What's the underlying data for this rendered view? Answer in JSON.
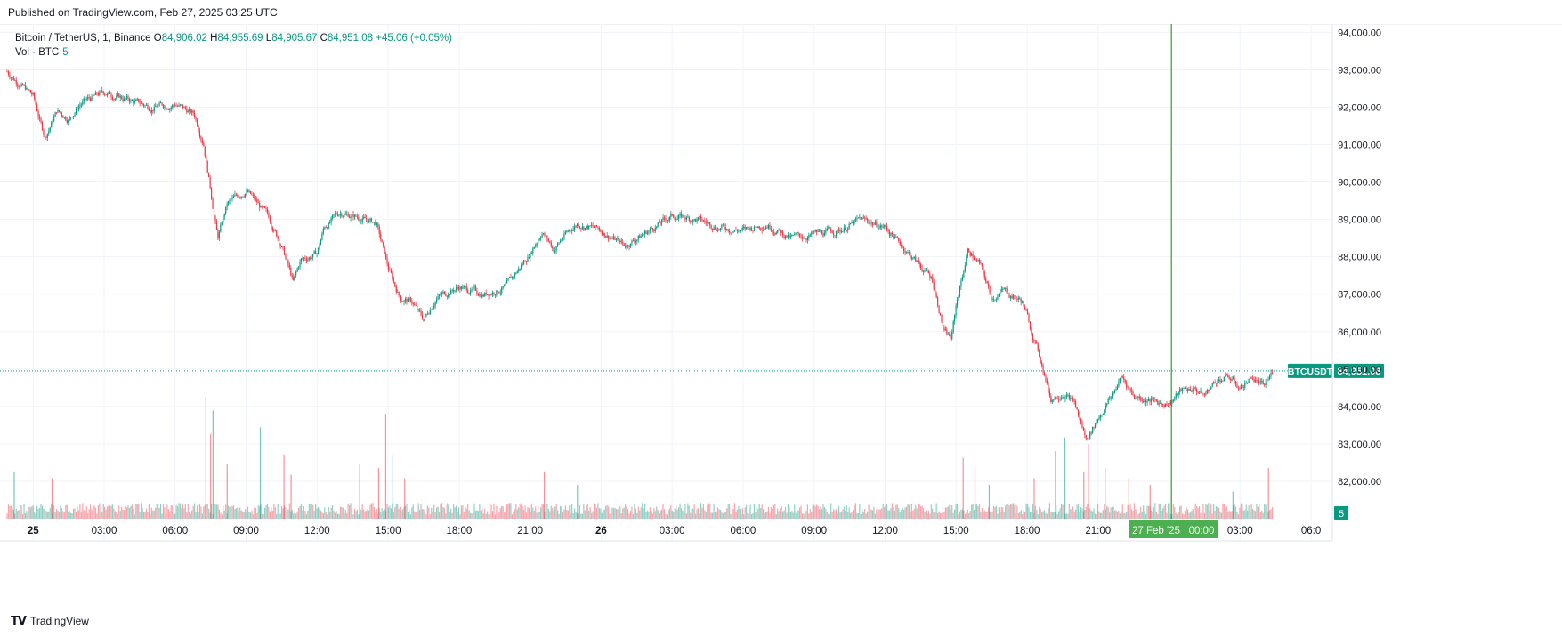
{
  "publish_note": "Published on TradingView.com, Feb 27, 2025 03:25 UTC",
  "legend": {
    "symbol": "Bitcoin / TetherUS, 1, Binance",
    "open_label": "O",
    "open": "84,906.02",
    "high_label": "H",
    "high": "84,955.69",
    "low_label": "L",
    "low": "84,905.67",
    "close_label": "C",
    "close": "84,951.08",
    "change": "+45.06 (+0.05%)",
    "volume_label": "Vol · BTC",
    "volume_value": "5"
  },
  "price_badge": {
    "symbol": "BTCUSDT",
    "price": "84,951.08"
  },
  "volume_badge": "5",
  "crosshair_time_label": "27 Feb '25   00:00",
  "footer_brand": "TradingView",
  "colors": {
    "up": "#089981",
    "down": "#f23645",
    "crosshair": "#2ca02c",
    "badge_bg": "#089981",
    "grid": "#f0f3fa",
    "time_badge": "#4caf50"
  },
  "chart_data": {
    "type": "candlestick",
    "title": "Bitcoin / TetherUS, 1, Binance",
    "y_axis": {
      "range": [
        81000,
        94200
      ],
      "ticks": [
        94000,
        93000,
        92000,
        91000,
        90000,
        89000,
        88000,
        87000,
        86000,
        85000,
        84000,
        83000,
        82000
      ],
      "tick_labels": [
        "94,000.00",
        "93,000.00",
        "92,000.00",
        "91,000.00",
        "90,000.00",
        "89,000.00",
        "88,000.00",
        "87,000.00",
        "86,000.00",
        "85,000.00",
        "84,000.00",
        "83,000.00",
        "82,000.00"
      ]
    },
    "x_axis": {
      "tick_hours": [
        0,
        3,
        6,
        9,
        12,
        15,
        18,
        21,
        24,
        27,
        30,
        33,
        36,
        39,
        42,
        45,
        48,
        51,
        54
      ],
      "tick_labels": [
        "25",
        "03:00",
        "06:00",
        "09:00",
        "12:00",
        "15:00",
        "18:00",
        "21:00",
        "26",
        "03:00",
        "06:00",
        "09:00",
        "12:00",
        "15:00",
        "18:00",
        "21:00",
        "",
        "03:00",
        "06:0"
      ],
      "range_hours": [
        -1.1,
        54.9
      ]
    },
    "crosshair_hour": 48.1,
    "last_price": 84951.08,
    "price_path": [
      [
        -1.1,
        92950
      ],
      [
        -0.5,
        92600
      ],
      [
        0.0,
        92300
      ],
      [
        0.3,
        91600
      ],
      [
        0.5,
        91200
      ],
      [
        1.0,
        91900
      ],
      [
        1.5,
        91700
      ],
      [
        2.0,
        92100
      ],
      [
        3.0,
        92400
      ],
      [
        4.0,
        92200
      ],
      [
        5.0,
        92000
      ],
      [
        6.0,
        92100
      ],
      [
        6.8,
        91800
      ],
      [
        7.2,
        91100
      ],
      [
        7.5,
        89800
      ],
      [
        7.8,
        88500
      ],
      [
        8.2,
        89400
      ],
      [
        9.0,
        89800
      ],
      [
        10.0,
        89000
      ],
      [
        10.5,
        88300
      ],
      [
        11.0,
        87300
      ],
      [
        11.3,
        87900
      ],
      [
        12.0,
        88100
      ],
      [
        12.3,
        88800
      ],
      [
        13.0,
        89200
      ],
      [
        14.0,
        89000
      ],
      [
        14.5,
        88900
      ],
      [
        15.0,
        87700
      ],
      [
        15.5,
        86900
      ],
      [
        16.0,
        86800
      ],
      [
        16.5,
        86300
      ],
      [
        17.0,
        86900
      ],
      [
        18.0,
        87200
      ],
      [
        19.0,
        87000
      ],
      [
        20.0,
        87200
      ],
      [
        21.0,
        88100
      ],
      [
        21.5,
        88700
      ],
      [
        22.0,
        88200
      ],
      [
        22.5,
        88600
      ],
      [
        23.0,
        88900
      ],
      [
        24.0,
        88700
      ],
      [
        25.0,
        88300
      ],
      [
        26.0,
        88700
      ],
      [
        27.0,
        89100
      ],
      [
        28.0,
        89000
      ],
      [
        29.0,
        88800
      ],
      [
        30.0,
        88700
      ],
      [
        31.0,
        88900
      ],
      [
        32.0,
        88500
      ],
      [
        33.0,
        88600
      ],
      [
        34.0,
        88700
      ],
      [
        35.0,
        89000
      ],
      [
        36.0,
        88800
      ],
      [
        37.0,
        88100
      ],
      [
        38.0,
        87400
      ],
      [
        38.5,
        86000
      ],
      [
        38.8,
        85800
      ],
      [
        39.0,
        86700
      ],
      [
        39.5,
        88200
      ],
      [
        40.0,
        87800
      ],
      [
        40.5,
        86900
      ],
      [
        41.0,
        87100
      ],
      [
        41.8,
        86800
      ],
      [
        42.2,
        86000
      ],
      [
        42.6,
        85200
      ],
      [
        43.0,
        84200
      ],
      [
        43.5,
        84400
      ],
      [
        44.0,
        84100
      ],
      [
        44.5,
        83100
      ],
      [
        45.0,
        83700
      ],
      [
        45.5,
        84200
      ],
      [
        46.0,
        84800
      ],
      [
        46.5,
        84300
      ],
      [
        47.0,
        84200
      ],
      [
        47.5,
        84100
      ],
      [
        48.0,
        84100
      ],
      [
        48.5,
        84400
      ],
      [
        49.0,
        84500
      ],
      [
        49.5,
        84300
      ],
      [
        50.0,
        84700
      ],
      [
        50.5,
        84800
      ],
      [
        51.0,
        84500
      ],
      [
        51.5,
        84800
      ],
      [
        52.0,
        84500
      ],
      [
        52.4,
        84950
      ]
    ],
    "volume_spikes": [
      [
        -0.8,
        1.4
      ],
      [
        0.8,
        1.2
      ],
      [
        7.3,
        3.6
      ],
      [
        7.6,
        3.2
      ],
      [
        7.5,
        2.5
      ],
      [
        8.2,
        1.6
      ],
      [
        9.6,
        2.7
      ],
      [
        10.6,
        1.9
      ],
      [
        10.9,
        1.3
      ],
      [
        13.8,
        1.6
      ],
      [
        14.6,
        1.5
      ],
      [
        14.9,
        3.1
      ],
      [
        15.2,
        1.9
      ],
      [
        15.7,
        1.2
      ],
      [
        21.6,
        1.4
      ],
      [
        23.0,
        1.0
      ],
      [
        39.3,
        1.8
      ],
      [
        39.8,
        1.5
      ],
      [
        40.4,
        1.0
      ],
      [
        42.3,
        1.2
      ],
      [
        43.2,
        2.0
      ],
      [
        43.6,
        2.4
      ],
      [
        44.4,
        1.4
      ],
      [
        44.6,
        2.2
      ],
      [
        45.3,
        1.5
      ],
      [
        46.3,
        1.2
      ],
      [
        47.2,
        1.0
      ],
      [
        50.7,
        0.8
      ],
      [
        52.2,
        1.5
      ]
    ]
  }
}
